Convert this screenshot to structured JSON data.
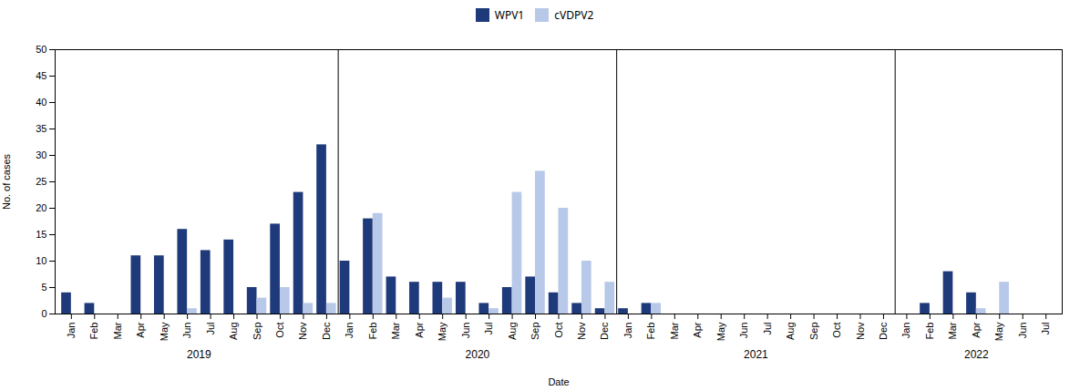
{
  "chart_data": {
    "type": "bar",
    "xlabel": "Date",
    "ylabel": "No. of cases",
    "categories": [
      "Jan",
      "Feb",
      "Mar",
      "Apr",
      "May",
      "Jun",
      "Jul",
      "Aug",
      "Sep",
      "Oct",
      "Nov",
      "Dec",
      "Jan",
      "Feb",
      "Mar",
      "Apr",
      "May",
      "Jun",
      "Jul",
      "Aug",
      "Sep",
      "Oct",
      "Nov",
      "Dec",
      "Jan",
      "Feb",
      "Mar",
      "Apr",
      "May",
      "Jun",
      "Jul",
      "Aug",
      "Sep",
      "Oct",
      "Nov",
      "Dec",
      "Jan",
      "Feb",
      "Mar",
      "Apr",
      "May",
      "Jun",
      "Jul"
    ],
    "annotations": [
      "2019",
      "2020",
      "2021",
      "2022"
    ],
    "series": [
      {
        "name": "WPV1",
        "color": "#1f3a7a",
        "values": [
          4,
          2,
          0,
          11,
          11,
          16,
          12,
          14,
          5,
          17,
          23,
          32,
          10,
          18,
          7,
          6,
          6,
          6,
          2,
          5,
          7,
          4,
          2,
          1,
          1,
          2,
          0,
          0,
          0,
          0,
          0,
          0,
          0,
          0,
          0,
          0,
          0,
          2,
          8,
          4,
          0,
          0,
          0
        ]
      },
      {
        "name": "cVDPV2",
        "color": "#b8c8e8",
        "values": [
          0,
          0,
          0,
          0,
          0,
          1,
          0,
          0,
          3,
          5,
          2,
          2,
          0,
          19,
          0,
          0,
          3,
          0,
          1,
          23,
          27,
          20,
          10,
          6,
          0,
          2,
          0,
          0,
          0,
          0,
          0,
          0,
          0,
          0,
          0,
          0,
          0,
          0,
          0,
          1,
          6,
          0,
          0
        ]
      }
    ],
    "ylim": [
      0,
      50
    ],
    "yticks": [
      0,
      5,
      10,
      15,
      20,
      25,
      30,
      35,
      40,
      45,
      50
    ],
    "grid": false,
    "legend": "upper center"
  }
}
